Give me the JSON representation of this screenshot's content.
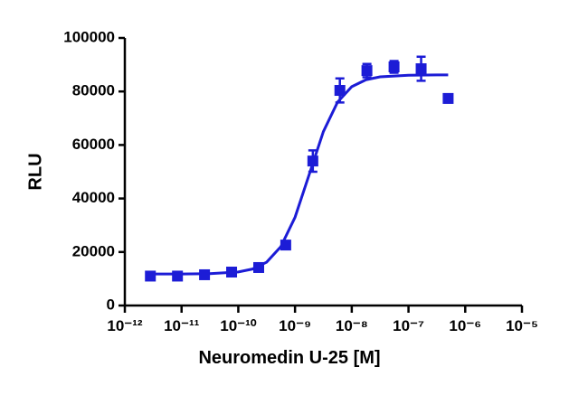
{
  "chart_data": {
    "type": "scatter",
    "x_label": "Neuromedin U-25 [M]",
    "y_label": "RLU",
    "log_x": true,
    "color": "#1c1cd6",
    "xlim": [
      1e-12,
      1e-05
    ],
    "xticks": [
      {
        "value": 1e-12,
        "label": "10⁻¹²"
      },
      {
        "value": 1e-11,
        "label": "10⁻¹¹"
      },
      {
        "value": 1e-10,
        "label": "10⁻¹⁰"
      },
      {
        "value": 1e-09,
        "label": "10⁻⁹"
      },
      {
        "value": 1e-08,
        "label": "10⁻⁸"
      },
      {
        "value": 1e-07,
        "label": "10⁻⁷"
      },
      {
        "value": 1e-06,
        "label": "10⁻⁶"
      },
      {
        "value": 1e-05,
        "label": "10⁻⁵"
      }
    ],
    "ylim": [
      0,
      100000
    ],
    "yticks": [
      0,
      20000,
      40000,
      60000,
      80000,
      100000
    ],
    "x": [
      2.82e-12,
      8.47e-12,
      2.54e-11,
      7.62e-11,
      2.29e-10,
      6.86e-10,
      2.06e-09,
      6.17e-09,
      1.85e-08,
      5.56e-08,
      1.67e-07,
      5e-07
    ],
    "values": [
      11000,
      11000,
      11500,
      12500,
      14200,
      22600,
      54000,
      80400,
      87800,
      89200,
      88500,
      77400
    ],
    "errors": [
      600,
      500,
      500,
      600,
      900,
      1200,
      4000,
      4500,
      2500,
      2200,
      4500,
      1500
    ],
    "fit": {
      "x": [
        2.82e-12,
        1e-11,
        3.16e-11,
        1e-10,
        1.78e-10,
        3.16e-10,
        5.62e-10,
        1e-09,
        1.78e-09,
        3.16e-09,
        5.62e-09,
        1e-08,
        1.78e-08,
        3.16e-08,
        1e-07,
        3.16e-07,
        5e-07
      ],
      "values": [
        11800,
        11800,
        11920,
        12540,
        13630,
        16200,
        21980,
        32980,
        49000,
        65020,
        76040,
        81790,
        84380,
        85460,
        86080,
        86200,
        86200
      ]
    }
  }
}
